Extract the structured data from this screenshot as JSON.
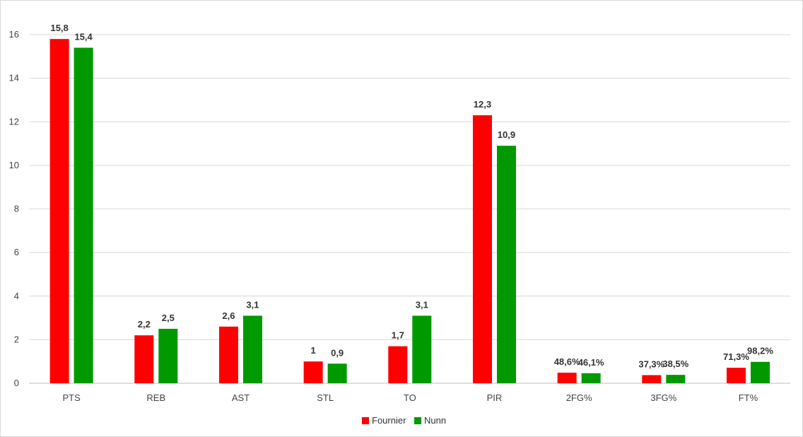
{
  "chart_data": {
    "type": "bar",
    "title": "",
    "xlabel": "",
    "ylabel": "",
    "categories": [
      "PTS",
      "REB",
      "AST",
      "STL",
      "TO",
      "PIR",
      "2FG%",
      "3FG%",
      "FT%"
    ],
    "ylim": [
      0,
      16
    ],
    "yticks": [
      0,
      2,
      4,
      6,
      8,
      10,
      12,
      14,
      16
    ],
    "grid": true,
    "legend_position": "bottom",
    "series": [
      {
        "name": "Fournier",
        "color": "#ff0000",
        "values": [
          15.8,
          2.2,
          2.6,
          1,
          1.7,
          12.3,
          0.486,
          0.373,
          0.713
        ],
        "labels": [
          "15,8",
          "2,2",
          "2,6",
          "1",
          "1,7",
          "12,3",
          "48,6%",
          "37,3%",
          "71,3%"
        ]
      },
      {
        "name": "Nunn",
        "color": "#009900",
        "values": [
          15.4,
          2.5,
          3.1,
          0.9,
          3.1,
          10.9,
          0.461,
          0.385,
          0.982
        ],
        "labels": [
          "15,4",
          "2,5",
          "3,1",
          "0,9",
          "3,1",
          "10,9",
          "46,1%",
          "38,5%",
          "98,2%"
        ]
      }
    ]
  }
}
